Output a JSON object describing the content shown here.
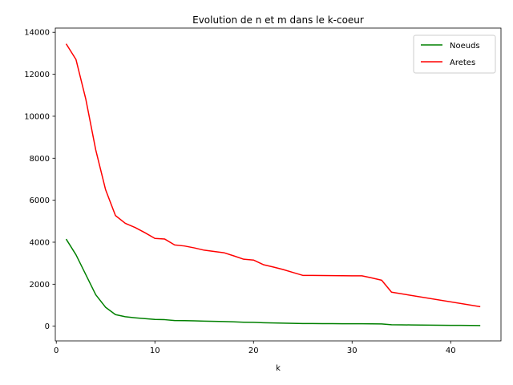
{
  "chart_data": {
    "type": "line",
    "title": "Evolution de n et m dans le k-coeur",
    "xlabel": "k",
    "ylabel": "",
    "xlim": [
      -0.1,
      45.1
    ],
    "ylim": [
      -700,
      14200
    ],
    "xticks": [
      0,
      10,
      20,
      30,
      40
    ],
    "yticks": [
      0,
      2000,
      4000,
      6000,
      8000,
      10000,
      12000,
      14000
    ],
    "grid": false,
    "legend_position": "top-right",
    "series": [
      {
        "name": "Noeuds",
        "color": "#008000",
        "x": [
          1,
          2,
          3,
          4,
          5,
          6,
          7,
          8,
          9,
          10,
          11,
          12,
          13,
          14,
          15,
          16,
          17,
          18,
          19,
          20,
          21,
          22,
          23,
          24,
          25,
          26,
          27,
          28,
          29,
          30,
          31,
          32,
          33,
          34,
          35,
          36,
          37,
          38,
          39,
          40,
          41,
          42,
          43
        ],
        "y": [
          4150,
          3400,
          2450,
          1500,
          900,
          550,
          450,
          400,
          360,
          320,
          310,
          270,
          265,
          255,
          240,
          230,
          220,
          205,
          190,
          185,
          165,
          155,
          145,
          135,
          125,
          125,
          122,
          120,
          118,
          117,
          115,
          110,
          105,
          70,
          65,
          60,
          55,
          50,
          45,
          40,
          38,
          35,
          30
        ]
      },
      {
        "name": "Aretes",
        "color": "#ff0000",
        "x": [
          1,
          2,
          3,
          4,
          5,
          6,
          7,
          8,
          9,
          10,
          11,
          12,
          13,
          14,
          15,
          16,
          17,
          18,
          19,
          20,
          21,
          22,
          23,
          24,
          25,
          26,
          27,
          28,
          29,
          30,
          31,
          32,
          33,
          34,
          43
        ],
        "y": [
          13450,
          12700,
          10800,
          8400,
          6500,
          5270,
          4900,
          4700,
          4450,
          4180,
          4150,
          3870,
          3820,
          3730,
          3620,
          3560,
          3500,
          3350,
          3190,
          3150,
          2930,
          2820,
          2700,
          2560,
          2420,
          2420,
          2415,
          2410,
          2405,
          2400,
          2400,
          2300,
          2190,
          1620,
          930
        ]
      }
    ]
  }
}
